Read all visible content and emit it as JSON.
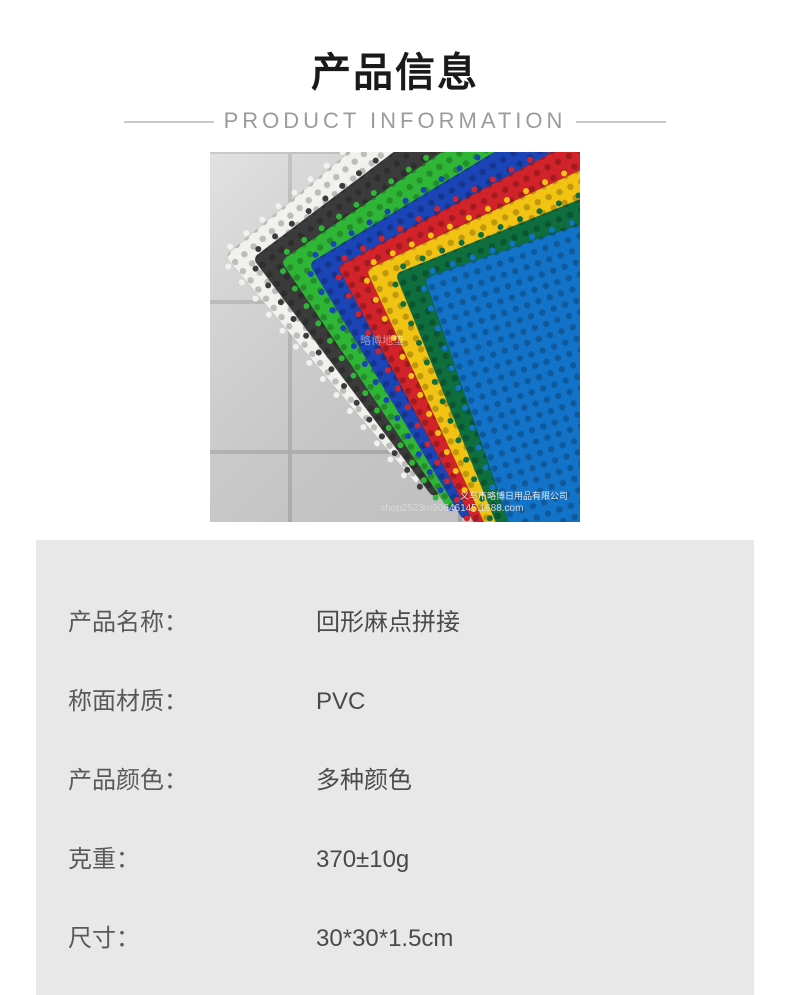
{
  "header": {
    "title_cn": "产品信息",
    "title_en": "PRODUCT INFORMATION"
  },
  "image": {
    "floor_color": "#d7d8d7",
    "grout_color": "#b8b9b8",
    "mat_colors": [
      "#f1f1ee",
      "#3b3b3b",
      "#2fb637",
      "#1b44b7",
      "#d12329",
      "#f3c313",
      "#0e6e3e",
      "#1273c9"
    ],
    "watermark_center": "略博地垫",
    "watermark_br1": "义乌市略博日用品有限公司",
    "watermark_br2": "shop2523m90646145.1688.com"
  },
  "spec": {
    "rows": [
      {
        "label": "产品名称：",
        "value": "回形麻点拼接"
      },
      {
        "label": "称面材质：",
        "value": "PVC"
      },
      {
        "label": "产品颜色：",
        "value": "多种颜色"
      },
      {
        "label": "克重：",
        "value": "370±10g"
      },
      {
        "label": "尺寸：",
        "value": "30*30*1.5cm"
      }
    ]
  }
}
